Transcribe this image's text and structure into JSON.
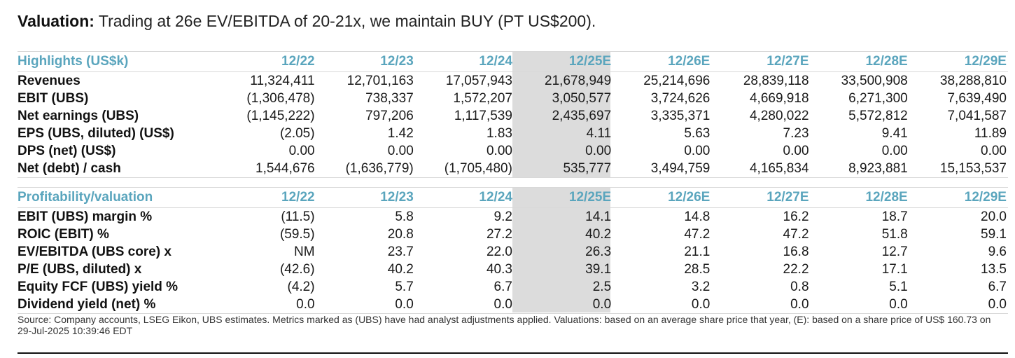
{
  "headline": {
    "bold": "Valuation:",
    "text": "Trading at 26e EV/EBITDA of 20-21x, we maintain BUY (PT US$200)."
  },
  "highlight_column_index": 3,
  "colors": {
    "header_blue": "#5aa5bd",
    "highlight_gray": "#dcdcdc"
  },
  "highlights": {
    "title": "Highlights (US$k)",
    "columns": [
      "12/22",
      "12/23",
      "12/24",
      "12/25E",
      "12/26E",
      "12/27E",
      "12/28E",
      "12/29E"
    ],
    "rows": [
      {
        "label": "Revenues",
        "values": [
          "11,324,411",
          "12,701,163",
          "17,057,943",
          "21,678,949",
          "25,214,696",
          "28,839,118",
          "33,500,908",
          "38,288,810"
        ]
      },
      {
        "label": "EBIT (UBS)",
        "values": [
          "(1,306,478)",
          "738,337",
          "1,572,207",
          "3,050,577",
          "3,724,626",
          "4,669,918",
          "6,271,300",
          "7,639,490"
        ]
      },
      {
        "label": "Net earnings (UBS)",
        "values": [
          "(1,145,222)",
          "797,206",
          "1,117,539",
          "2,435,697",
          "3,335,371",
          "4,280,022",
          "5,572,812",
          "7,041,587"
        ]
      },
      {
        "label": "EPS (UBS, diluted) (US$)",
        "values": [
          "(2.05)",
          "1.42",
          "1.83",
          "4.11",
          "5.63",
          "7.23",
          "9.41",
          "11.89"
        ]
      },
      {
        "label": "DPS (net) (US$)",
        "values": [
          "0.00",
          "0.00",
          "0.00",
          "0.00",
          "0.00",
          "0.00",
          "0.00",
          "0.00"
        ]
      },
      {
        "label": "Net (debt) / cash",
        "values": [
          "1,544,676",
          "(1,636,779)",
          "(1,705,480)",
          "535,777",
          "3,494,759",
          "4,165,834",
          "8,923,881",
          "15,153,537"
        ]
      }
    ]
  },
  "profitability": {
    "title": "Profitability/valuation",
    "columns": [
      "12/22",
      "12/23",
      "12/24",
      "12/25E",
      "12/26E",
      "12/27E",
      "12/28E",
      "12/29E"
    ],
    "rows": [
      {
        "label": "EBIT (UBS) margin %",
        "values": [
          "(11.5)",
          "5.8",
          "9.2",
          "14.1",
          "14.8",
          "16.2",
          "18.7",
          "20.0"
        ]
      },
      {
        "label": "ROIC (EBIT) %",
        "values": [
          "(59.5)",
          "20.8",
          "27.2",
          "40.2",
          "47.2",
          "47.2",
          "51.8",
          "59.1"
        ]
      },
      {
        "label": "EV/EBITDA (UBS core) x",
        "values": [
          "NM",
          "23.7",
          "22.0",
          "26.3",
          "21.1",
          "16.8",
          "12.7",
          "9.6"
        ]
      },
      {
        "label": "P/E (UBS, diluted) x",
        "values": [
          "(42.6)",
          "40.2",
          "40.3",
          "39.1",
          "28.5",
          "22.2",
          "17.1",
          "13.5"
        ]
      },
      {
        "label": "Equity FCF (UBS) yield %",
        "values": [
          "(4.2)",
          "5.7",
          "6.7",
          "2.5",
          "3.2",
          "0.8",
          "5.1",
          "6.7"
        ]
      },
      {
        "label": "Dividend yield (net) %",
        "values": [
          "0.0",
          "0.0",
          "0.0",
          "0.0",
          "0.0",
          "0.0",
          "0.0",
          "0.0"
        ]
      }
    ]
  },
  "source_note": "Source: Company accounts, LSEG Eikon, UBS estimates. Metrics marked as (UBS) have had analyst adjustments applied. Valuations: based on an average share price that year, (E): based on a share price of US$ 160.73 on 29-Jul-2025 10:39:46 EDT"
}
